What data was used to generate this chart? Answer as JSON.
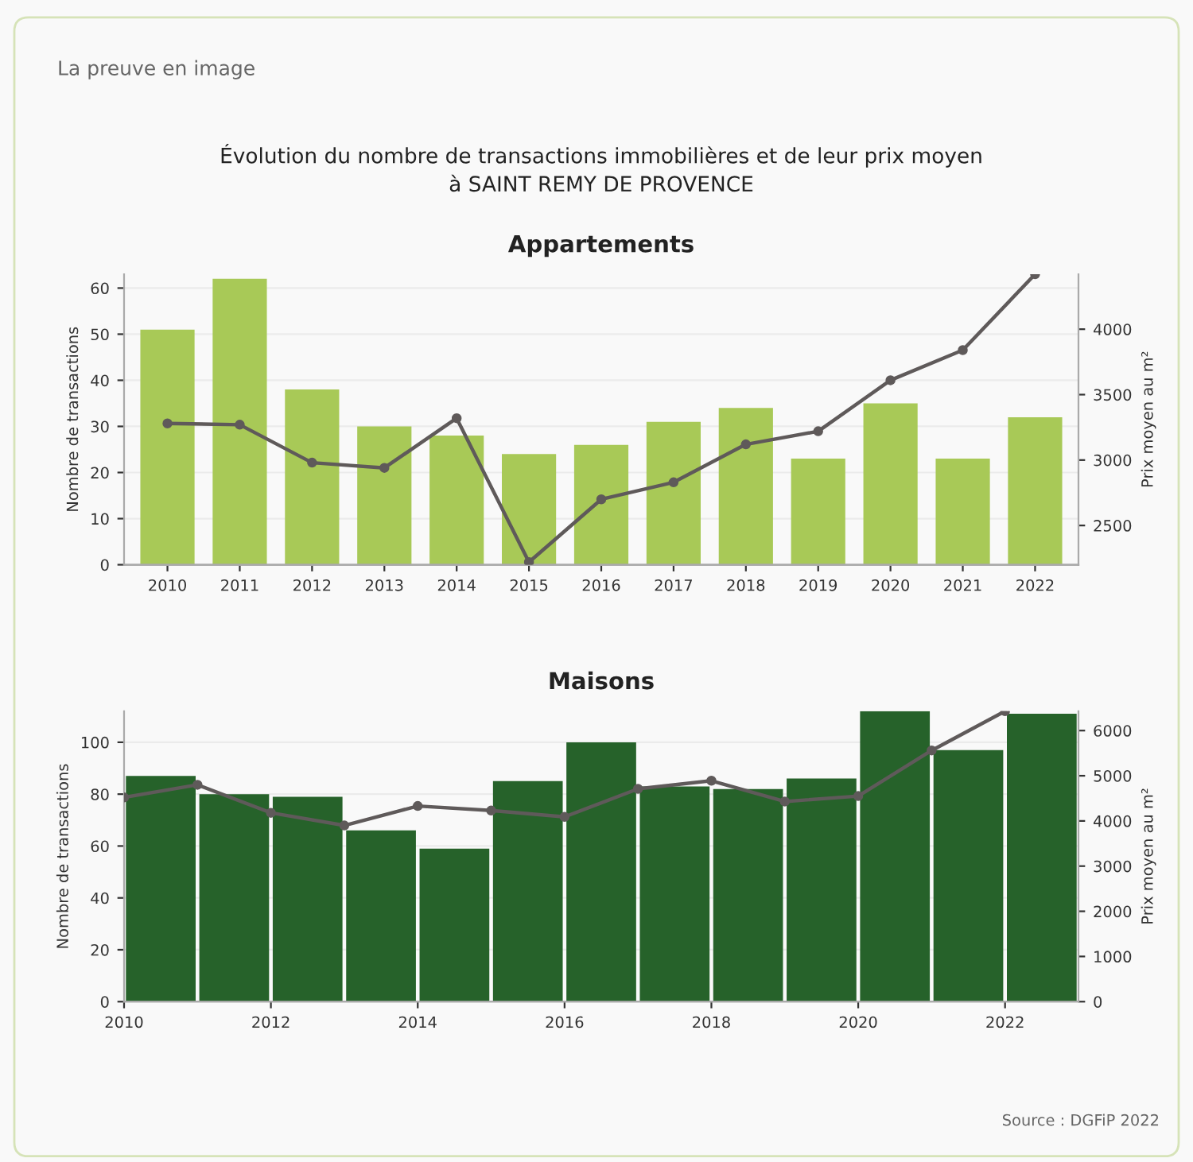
{
  "chart_data": [
    {
      "type": "bar",
      "title": "Évolution du nombre de transactions immobilières et de leur prix moyen\nà SAINT REMY DE PROVENCE",
      "subtitle": "Appartements",
      "annotations": [
        "La preuve en image"
      ],
      "ylabel": "Nombre de transactions",
      "y2label": "Prix moyen au m²",
      "categories": [
        "2010",
        "2011",
        "2012",
        "2013",
        "2014",
        "2015",
        "2016",
        "2017",
        "2018",
        "2019",
        "2020",
        "2021",
        "2022"
      ],
      "series": [
        {
          "color": "#a8c957",
          "values": [
            51,
            62,
            38,
            30,
            28,
            24,
            26,
            31,
            34,
            23,
            35,
            23,
            32
          ]
        },
        {
          "type": "line",
          "axis": "y2",
          "color": "#5f5a5a",
          "marker": "circle",
          "values": [
            3280,
            3270,
            2980,
            2940,
            3320,
            2220,
            2700,
            2830,
            3120,
            3220,
            3610,
            3840,
            4420
          ]
        }
      ],
      "ylim": [
        0,
        63
      ],
      "yticks": [
        0,
        10,
        20,
        30,
        40,
        50,
        60
      ],
      "y2lim": [
        2200,
        4420
      ],
      "y2ticks": [
        2500,
        3000,
        3500,
        4000
      ],
      "grid": "y"
    },
    {
      "type": "bar",
      "title": "Maisons",
      "annotations": [
        "Source : DGFiP 2022"
      ],
      "ylabel": "Nombre de transactions",
      "y2label": "Prix moyen au m²",
      "series": [
        {
          "color": "#26622a",
          "x": [
            2010.5,
            2011.5,
            2012.5,
            2013.5,
            2014.5,
            2015.5,
            2016.5,
            2017.5,
            2018.5,
            2019.5,
            2020.5,
            2021.5,
            2022.5
          ],
          "values": [
            87,
            80,
            79,
            66,
            59,
            85,
            100,
            83,
            82,
            86,
            112,
            97,
            111
          ]
        },
        {
          "type": "line",
          "axis": "y2",
          "color": "#5f5a5a",
          "marker": "circle",
          "x": [
            2010,
            2011,
            2012,
            2013,
            2014,
            2015,
            2016,
            2017,
            2018,
            2019,
            2020,
            2021,
            2022
          ],
          "values": [
            4520,
            4800,
            4180,
            3900,
            4330,
            4230,
            4090,
            4710,
            4890,
            4430,
            4550,
            5560,
            6430
          ]
        }
      ],
      "xlim": [
        2010,
        2023
      ],
      "xticks": [
        2010,
        2012,
        2014,
        2016,
        2018,
        2020,
        2022
      ],
      "ylim": [
        0,
        112
      ],
      "yticks": [
        0,
        20,
        40,
        60,
        80,
        100
      ],
      "y2lim": [
        0,
        6430
      ],
      "y2ticks": [
        0,
        1000,
        2000,
        3000,
        4000,
        5000,
        6000
      ],
      "grid": "y"
    }
  ]
}
